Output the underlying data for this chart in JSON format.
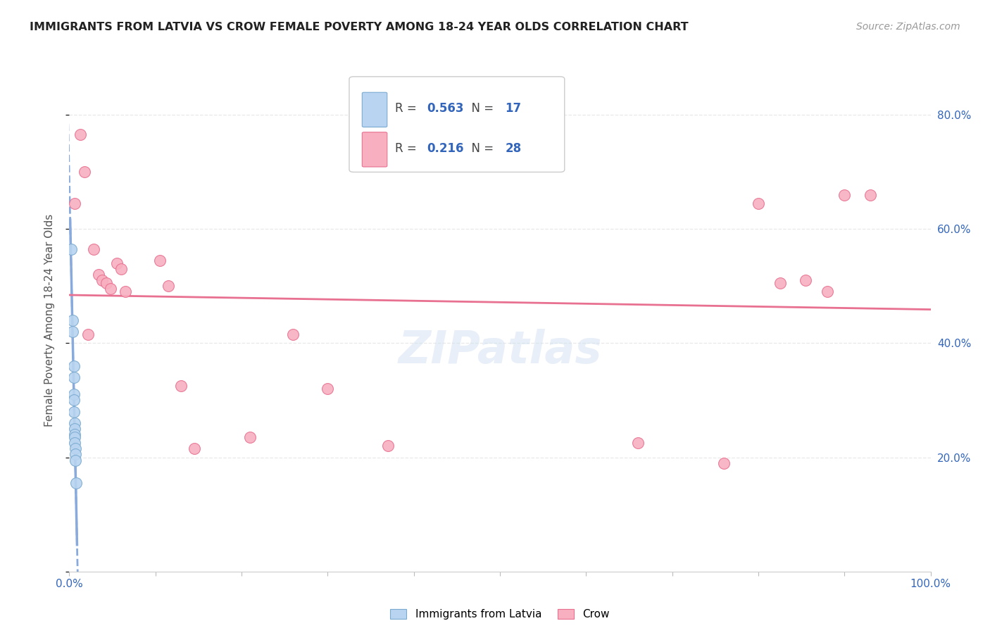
{
  "title": "IMMIGRANTS FROM LATVIA VS CROW FEMALE POVERTY AMONG 18-24 YEAR OLDS CORRELATION CHART",
  "source": "Source: ZipAtlas.com",
  "ylabel": "Female Poverty Among 18-24 Year Olds",
  "latvia_R": 0.563,
  "latvia_N": 17,
  "crow_R": 0.216,
  "crow_N": 28,
  "watermark": "ZIPatlas",
  "latvia_fill_color": "#b8d4f0",
  "latvia_edge_color": "#7aaad0",
  "crow_fill_color": "#f8b0c0",
  "crow_edge_color": "#e87090",
  "latvia_line_color": "#88aadd",
  "crow_line_color": "#e87090",
  "title_color": "#222222",
  "source_color": "#999999",
  "axis_tick_color": "#3366bb",
  "ylabel_color": "#555555",
  "grid_color": "#e8e8e8",
  "legend_r_color": "#444444",
  "legend_val_color": "#3366bb",
  "background_color": "#ffffff",
  "latvia_points_x": [
    0.002,
    0.004,
    0.004,
    0.005,
    0.005,
    0.005,
    0.005,
    0.005,
    0.006,
    0.006,
    0.006,
    0.006,
    0.006,
    0.007,
    0.007,
    0.007,
    0.008
  ],
  "latvia_points_y": [
    0.565,
    0.44,
    0.42,
    0.36,
    0.34,
    0.31,
    0.3,
    0.28,
    0.26,
    0.25,
    0.24,
    0.235,
    0.225,
    0.215,
    0.205,
    0.195,
    0.155
  ],
  "crow_points_x": [
    0.006,
    0.013,
    0.018,
    0.022,
    0.028,
    0.034,
    0.038,
    0.043,
    0.048,
    0.055,
    0.06,
    0.065,
    0.105,
    0.115,
    0.13,
    0.145,
    0.21,
    0.26,
    0.3,
    0.37,
    0.66,
    0.76,
    0.8,
    0.825,
    0.855,
    0.88,
    0.9,
    0.93
  ],
  "crow_points_y": [
    0.645,
    0.765,
    0.7,
    0.415,
    0.565,
    0.52,
    0.51,
    0.505,
    0.495,
    0.54,
    0.53,
    0.49,
    0.545,
    0.5,
    0.325,
    0.215,
    0.235,
    0.415,
    0.32,
    0.22,
    0.225,
    0.19,
    0.645,
    0.505,
    0.51,
    0.49,
    0.66,
    0.66
  ],
  "xlim": [
    0.0,
    1.0
  ],
  "ylim": [
    0.0,
    0.88
  ],
  "yticks": [
    0.0,
    0.2,
    0.4,
    0.6,
    0.8
  ],
  "xticks": [
    0.0,
    0.1,
    0.2,
    0.3,
    0.4,
    0.5,
    0.6,
    0.7,
    0.8,
    0.9,
    1.0
  ]
}
